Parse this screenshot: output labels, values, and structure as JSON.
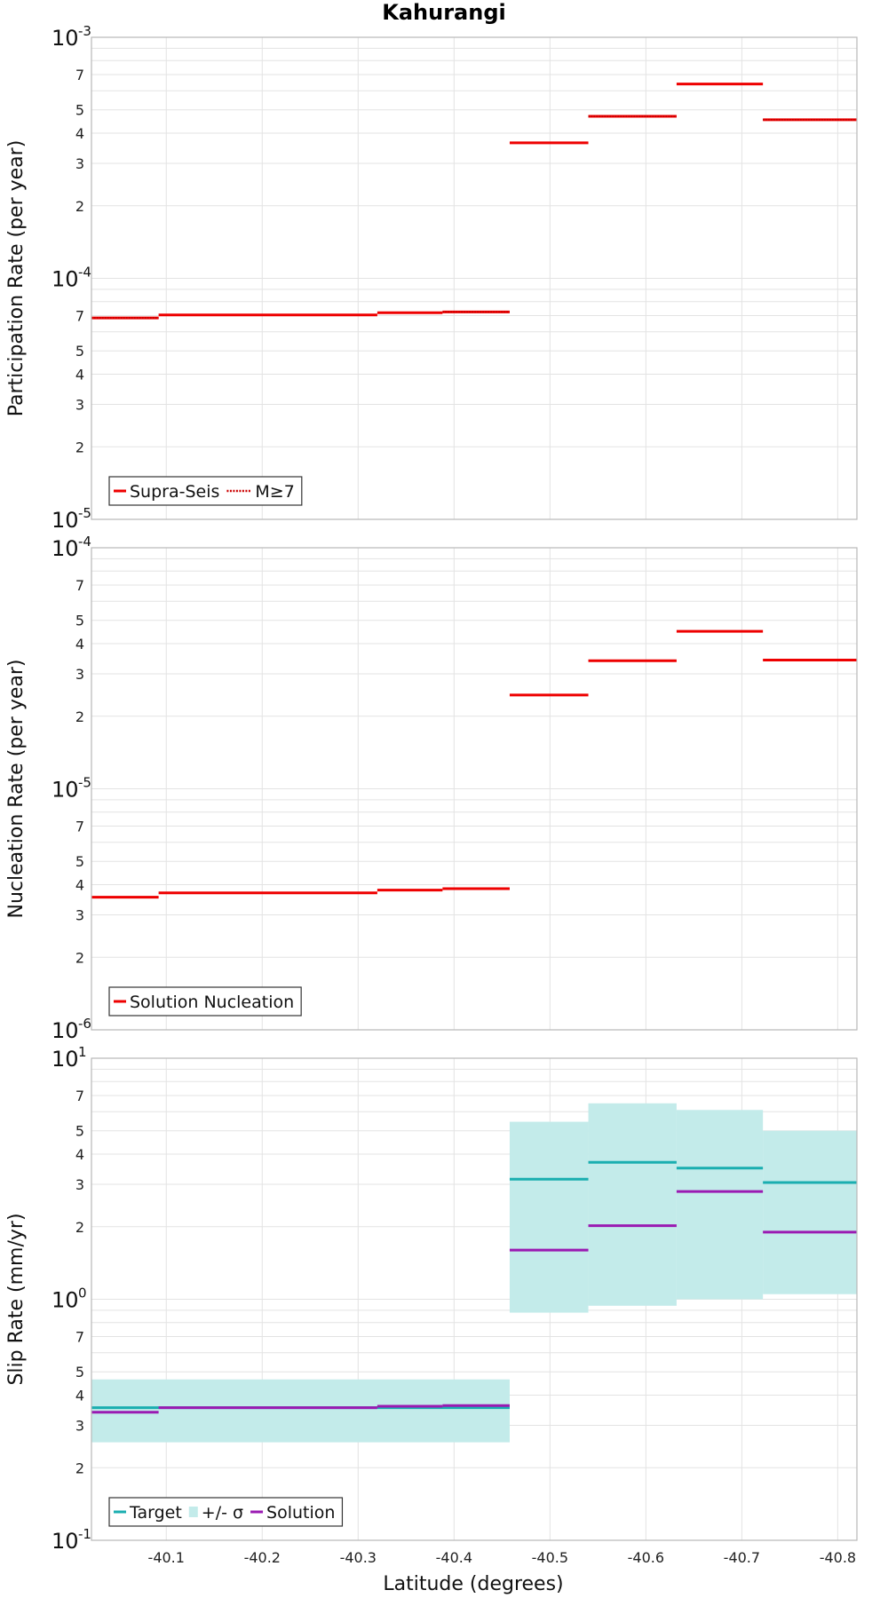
{
  "chart_data": {
    "type": "line",
    "title": "Kahurangi",
    "xlabel": "Latitude (degrees)",
    "x_range": [
      -40.022,
      -40.82
    ],
    "x_ticks": [
      {
        "value": -40.1,
        "label": "-40.1"
      },
      {
        "value": -40.2,
        "label": "-40.2"
      },
      {
        "value": -40.3,
        "label": "-40.3"
      },
      {
        "value": -40.4,
        "label": "-40.4"
      },
      {
        "value": -40.5,
        "label": "-40.5"
      },
      {
        "value": -40.6,
        "label": "-40.6"
      },
      {
        "value": -40.7,
        "label": "-40.7"
      },
      {
        "value": -40.8,
        "label": "-40.8"
      }
    ],
    "grid": true,
    "panels": [
      {
        "ylabel": "Participation Rate (per year)",
        "scale": "log",
        "ylim": [
          1e-05,
          0.001
        ],
        "decade_labels": [
          {
            "value": 0.001,
            "base": "10",
            "exp": "-3"
          },
          {
            "value": 0.0001,
            "base": "10",
            "exp": "-4"
          },
          {
            "value": 1e-05,
            "base": "10",
            "exp": "-5"
          }
        ],
        "minor_labels": [
          "2",
          "3",
          "4",
          "5",
          "7"
        ],
        "legend_position": "bottom-left",
        "series": [
          {
            "name": "Supra-Seis",
            "color": "#ee0000",
            "dash": "solid",
            "segments": [
              {
                "x0": -40.022,
                "x1": -40.092,
                "y": 6.85e-05
              },
              {
                "x0": -40.092,
                "x1": -40.32,
                "y": 7.05e-05
              },
              {
                "x0": -40.32,
                "x1": -40.388,
                "y": 7.2e-05
              },
              {
                "x0": -40.388,
                "x1": -40.458,
                "y": 7.25e-05
              },
              {
                "x0": -40.458,
                "x1": -40.54,
                "y": 0.000365
              },
              {
                "x0": -40.54,
                "x1": -40.632,
                "y": 0.00047
              },
              {
                "x0": -40.632,
                "x1": -40.722,
                "y": 0.00064
              },
              {
                "x0": -40.722,
                "x1": -40.82,
                "y": 0.000455
              }
            ]
          },
          {
            "name": "M≥7",
            "color": "#ee0000",
            "dash": "dotted",
            "segments": [
              {
                "x0": -40.022,
                "x1": -40.092,
                "y": 6.85e-05
              },
              {
                "x0": -40.388,
                "x1": -40.458,
                "y": 7.25e-05
              },
              {
                "x0": -40.54,
                "x1": -40.632,
                "y": 0.00047
              },
              {
                "x0": -40.722,
                "x1": -40.82,
                "y": 0.000455
              }
            ]
          }
        ]
      },
      {
        "ylabel": "Nucleation Rate (per year)",
        "scale": "log",
        "ylim": [
          1e-06,
          0.0001
        ],
        "decade_labels": [
          {
            "value": 0.0001,
            "base": "10",
            "exp": "-4"
          },
          {
            "value": 1e-05,
            "base": "10",
            "exp": "-5"
          },
          {
            "value": 1e-06,
            "base": "10",
            "exp": "-6"
          }
        ],
        "minor_labels": [
          "2",
          "3",
          "4",
          "5",
          "7"
        ],
        "legend_position": "bottom-left",
        "series": [
          {
            "name": "Solution Nucleation",
            "color": "#ee0000",
            "dash": "solid",
            "segments": [
              {
                "x0": -40.022,
                "x1": -40.092,
                "y": 3.55e-06
              },
              {
                "x0": -40.092,
                "x1": -40.32,
                "y": 3.7e-06
              },
              {
                "x0": -40.32,
                "x1": -40.388,
                "y": 3.8e-06
              },
              {
                "x0": -40.388,
                "x1": -40.458,
                "y": 3.85e-06
              },
              {
                "x0": -40.458,
                "x1": -40.54,
                "y": 2.45e-05
              },
              {
                "x0": -40.54,
                "x1": -40.632,
                "y": 3.4e-05
              },
              {
                "x0": -40.632,
                "x1": -40.722,
                "y": 4.5e-05
              },
              {
                "x0": -40.722,
                "x1": -40.82,
                "y": 3.42e-05
              }
            ]
          }
        ]
      },
      {
        "ylabel": "Slip Rate (mm/yr)",
        "scale": "log",
        "ylim": [
          0.1,
          10
        ],
        "decade_labels": [
          {
            "value": 10,
            "base": "10",
            "exp": "1"
          },
          {
            "value": 1,
            "base": "10",
            "exp": "0"
          },
          {
            "value": 0.1,
            "base": "10",
            "exp": "-1"
          }
        ],
        "minor_labels": [
          "2",
          "3",
          "4",
          "5",
          "7"
        ],
        "legend_position": "bottom-left",
        "bands": [
          {
            "name": "+/- σ",
            "color": "#c3ebea",
            "segments": [
              {
                "x0": -40.022,
                "x1": -40.458,
                "low": 0.255,
                "high": 0.465
              },
              {
                "x0": -40.458,
                "x1": -40.54,
                "low": 0.88,
                "high": 5.45
              },
              {
                "x0": -40.54,
                "x1": -40.632,
                "low": 0.94,
                "high": 6.5
              },
              {
                "x0": -40.632,
                "x1": -40.722,
                "low": 1.0,
                "high": 6.1
              },
              {
                "x0": -40.722,
                "x1": -40.82,
                "low": 1.05,
                "high": 5.0
              }
            ]
          }
        ],
        "series": [
          {
            "name": "Target",
            "color": "#1aaeb0",
            "dash": "solid",
            "segments": [
              {
                "x0": -40.022,
                "x1": -40.458,
                "y": 0.355
              },
              {
                "x0": -40.458,
                "x1": -40.54,
                "y": 3.15
              },
              {
                "x0": -40.54,
                "x1": -40.632,
                "y": 3.7
              },
              {
                "x0": -40.632,
                "x1": -40.722,
                "y": 3.5
              },
              {
                "x0": -40.722,
                "x1": -40.82,
                "y": 3.05
              }
            ]
          },
          {
            "name": "Solution",
            "color": "#9a1ab2",
            "dash": "solid",
            "segments": [
              {
                "x0": -40.022,
                "x1": -40.092,
                "y": 0.34
              },
              {
                "x0": -40.092,
                "x1": -40.32,
                "y": 0.355
              },
              {
                "x0": -40.32,
                "x1": -40.388,
                "y": 0.36
              },
              {
                "x0": -40.388,
                "x1": -40.458,
                "y": 0.362
              },
              {
                "x0": -40.458,
                "x1": -40.54,
                "y": 1.6
              },
              {
                "x0": -40.54,
                "x1": -40.632,
                "y": 2.02
              },
              {
                "x0": -40.632,
                "x1": -40.722,
                "y": 2.8
              },
              {
                "x0": -40.722,
                "x1": -40.82,
                "y": 1.9
              }
            ]
          }
        ],
        "legend_order": [
          "Target",
          "+/- σ",
          "Solution"
        ]
      }
    ]
  }
}
